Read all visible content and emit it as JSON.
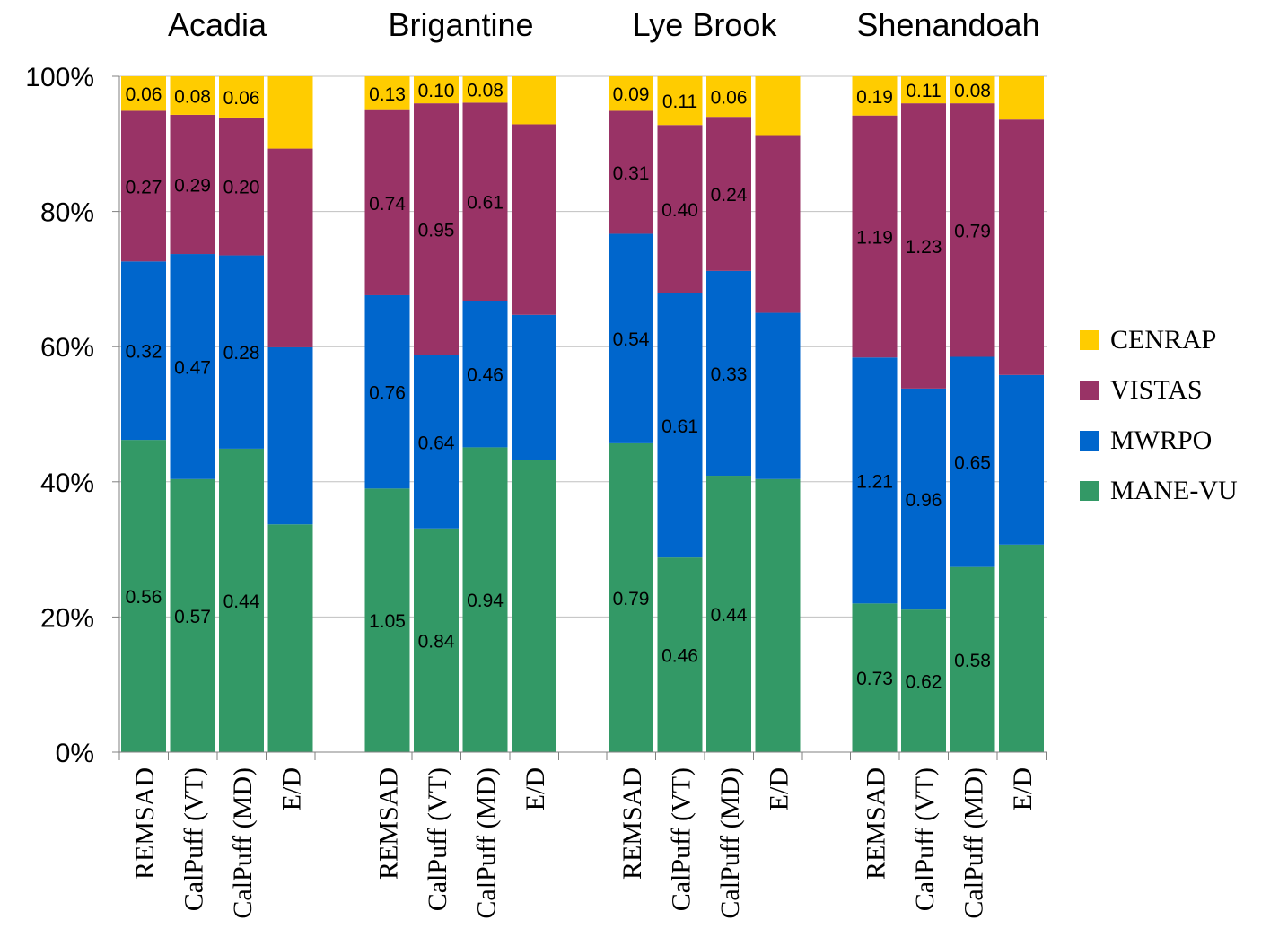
{
  "chart_data": {
    "type": "bar",
    "stacked": true,
    "normalized_percent": true,
    "grid": true,
    "legend_position": "right",
    "yticks": [
      "0%",
      "20%",
      "40%",
      "60%",
      "80%",
      "100%"
    ],
    "ylim": [
      0,
      100
    ],
    "colors": {
      "CENRAP": "#FFCC00",
      "VISTAS": "#993366",
      "MWRPO": "#0066CC",
      "MANE-VU": "#339966"
    },
    "legend": [
      "CENRAP",
      "VISTAS",
      "MWRPO",
      "MANE-VU"
    ],
    "groups": [
      {
        "name": "Acadia",
        "bars": [
          {
            "label": "REMSAD",
            "segments": {
              "MANE-VU": 46.2,
              "MWRPO": 26.4,
              "VISTAS": 22.3,
              "CENRAP": 5.1
            },
            "labels": {
              "MANE-VU": "0.56",
              "MWRPO": "0.32",
              "VISTAS": "0.27",
              "CENRAP": "0.06"
            }
          },
          {
            "label": "CalPuff (VT)",
            "segments": {
              "MANE-VU": 40.4,
              "MWRPO": 33.3,
              "VISTAS": 20.6,
              "CENRAP": 5.7
            },
            "labels": {
              "MANE-VU": "0.57",
              "MWRPO": "0.47",
              "VISTAS": "0.29",
              "CENRAP": "0.08"
            }
          },
          {
            "label": "CalPuff (MD)",
            "segments": {
              "MANE-VU": 44.9,
              "MWRPO": 28.6,
              "VISTAS": 20.4,
              "CENRAP": 6.1
            },
            "labels": {
              "MANE-VU": "0.44",
              "MWRPO": "0.28",
              "VISTAS": "0.20",
              "CENRAP": "0.06"
            }
          },
          {
            "label": "E/D",
            "segments": {
              "MANE-VU": 33.7,
              "MWRPO": 26.2,
              "VISTAS": 29.4,
              "CENRAP": 10.7
            },
            "labels": {}
          }
        ]
      },
      {
        "name": "Brigantine",
        "bars": [
          {
            "label": "REMSAD",
            "segments": {
              "MANE-VU": 39.0,
              "MWRPO": 28.6,
              "VISTAS": 27.4,
              "CENRAP": 5.0
            },
            "labels": {
              "MANE-VU": "1.05",
              "MWRPO": "0.76",
              "VISTAS": "0.74",
              "CENRAP": "0.13"
            }
          },
          {
            "label": "CalPuff (VT)",
            "segments": {
              "MANE-VU": 33.1,
              "MWRPO": 25.6,
              "VISTAS": 37.3,
              "CENRAP": 4.0
            },
            "labels": {
              "MANE-VU": "0.84",
              "MWRPO": "0.64",
              "VISTAS": "0.95",
              "CENRAP": "0.10"
            }
          },
          {
            "label": "CalPuff (MD)",
            "segments": {
              "MANE-VU": 45.1,
              "MWRPO": 21.7,
              "VISTAS": 29.3,
              "CENRAP": 3.9
            },
            "labels": {
              "MANE-VU": "0.94",
              "MWRPO": "0.46",
              "VISTAS": "0.61",
              "CENRAP": "0.08"
            }
          },
          {
            "label": "E/D",
            "segments": {
              "MANE-VU": 43.2,
              "MWRPO": 21.5,
              "VISTAS": 28.2,
              "CENRAP": 7.1
            },
            "labels": {}
          }
        ]
      },
      {
        "name": "Lye Brook",
        "bars": [
          {
            "label": "REMSAD",
            "segments": {
              "MANE-VU": 45.7,
              "MWRPO": 31.0,
              "VISTAS": 18.2,
              "CENRAP": 5.1
            },
            "labels": {
              "MANE-VU": "0.79",
              "MWRPO": "0.54",
              "VISTAS": "0.31",
              "CENRAP": "0.09"
            }
          },
          {
            "label": "CalPuff (VT)",
            "segments": {
              "MANE-VU": 28.8,
              "MWRPO": 39.1,
              "VISTAS": 24.9,
              "CENRAP": 7.2
            },
            "labels": {
              "MANE-VU": "0.46",
              "MWRPO": "0.61",
              "VISTAS": "0.40",
              "CENRAP": "0.11"
            }
          },
          {
            "label": "CalPuff (MD)",
            "segments": {
              "MANE-VU": 40.9,
              "MWRPO": 30.3,
              "VISTAS": 22.8,
              "CENRAP": 6.0
            },
            "labels": {
              "MANE-VU": "0.44",
              "MWRPO": "0.33",
              "VISTAS": "0.24",
              "CENRAP": "0.06"
            }
          },
          {
            "label": "E/D",
            "segments": {
              "MANE-VU": 40.4,
              "MWRPO": 24.6,
              "VISTAS": 26.3,
              "CENRAP": 8.7
            },
            "labels": {}
          }
        ]
      },
      {
        "name": "Shenandoah",
        "bars": [
          {
            "label": "REMSAD",
            "segments": {
              "MANE-VU": 22.0,
              "MWRPO": 36.4,
              "VISTAS": 35.8,
              "CENRAP": 5.8
            },
            "labels": {
              "MANE-VU": "0.73",
              "MWRPO": "1.21",
              "VISTAS": "1.19",
              "CENRAP": "0.19"
            }
          },
          {
            "label": "CalPuff (VT)",
            "segments": {
              "MANE-VU": 21.1,
              "MWRPO": 32.7,
              "VISTAS": 42.2,
              "CENRAP": 4.0
            },
            "labels": {
              "MANE-VU": "0.62",
              "MWRPO": "0.96",
              "VISTAS": "1.23",
              "CENRAP": "0.11"
            }
          },
          {
            "label": "CalPuff (MD)",
            "segments": {
              "MANE-VU": 27.4,
              "MWRPO": 31.1,
              "VISTAS": 37.5,
              "CENRAP": 4.0
            },
            "labels": {
              "MANE-VU": "0.58",
              "MWRPO": "0.65",
              "VISTAS": "0.79",
              "CENRAP": "0.08"
            }
          },
          {
            "label": "E/D",
            "segments": {
              "MANE-VU": 30.7,
              "MWRPO": 25.1,
              "VISTAS": 37.8,
              "CENRAP": 6.4
            },
            "labels": {}
          }
        ]
      }
    ]
  }
}
